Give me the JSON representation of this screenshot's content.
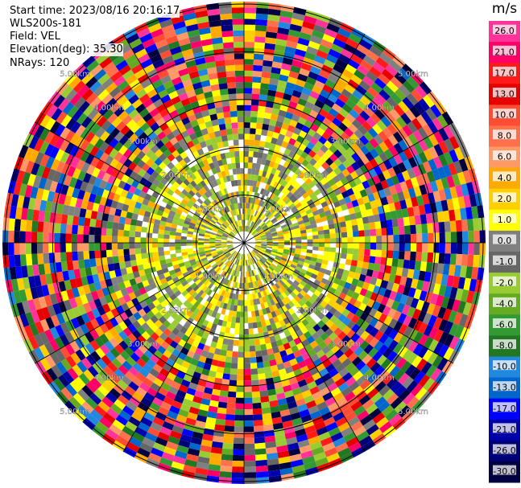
{
  "info": {
    "start_time": "Start time: 2023/08/16 20:16:17",
    "instrument": "WLS200s-181",
    "field": "Field: VEL",
    "elevation": "Elevation(deg): 35.30",
    "nrays": "NRays: 120"
  },
  "chart_data": {
    "type": "heatmap",
    "projection": "polar-ppi",
    "nrays": 120,
    "ring_labels_km": [
      1,
      2,
      3,
      4,
      5
    ],
    "ring_label_text": [
      "1.00km",
      "2.00km",
      "3.00km",
      "4.00km",
      "5.00km"
    ],
    "grid_angles_deg": [
      0,
      30,
      60,
      90,
      120,
      150,
      180,
      210,
      240,
      270,
      300,
      330
    ],
    "colorbar": {
      "unit": "m/s",
      "ticks": [
        "26.0",
        "21.0",
        "17.0",
        "13.0",
        "10.0",
        "8.0",
        "6.0",
        "4.0",
        "2.0",
        "1.0",
        "0.0",
        "-1.0",
        "-2.0",
        "-4.0",
        "-6.0",
        "-8.0",
        "-10.0",
        "-13.0",
        "-17.0",
        "-21.0",
        "-26.0",
        "-30.0"
      ],
      "colors": [
        "#ff3399",
        "#ff0066",
        "#ff1a1a",
        "#e60000",
        "#ff4d33",
        "#ff704d",
        "#ff9966",
        "#ffaa00",
        "#ffd000",
        "#ffff00",
        "#808080",
        "#666666",
        "#99cc33",
        "#66aa22",
        "#339933",
        "#227722",
        "#2288dd",
        "#0066cc",
        "#0000ff",
        "#0000aa",
        "#000077",
        "#000040"
      ]
    },
    "field": "VEL"
  }
}
